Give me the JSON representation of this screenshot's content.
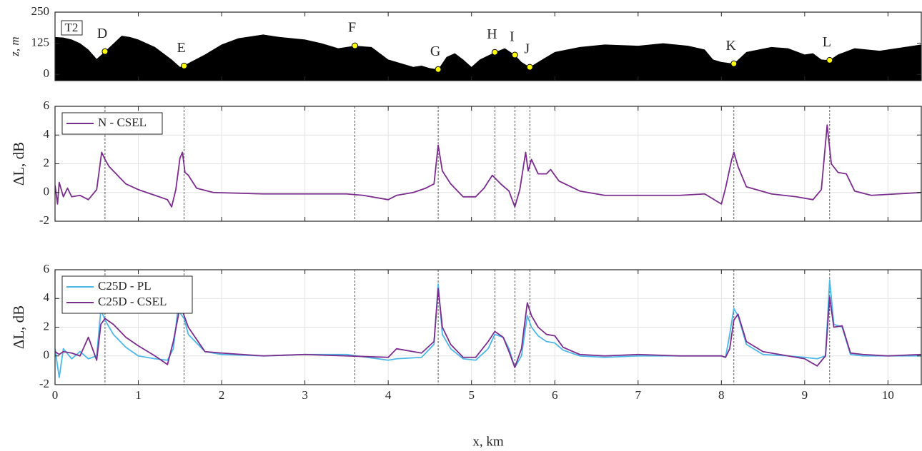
{
  "chart_data": [
    {
      "type": "area",
      "ylabel": "z, m",
      "panel_label": "T2",
      "x": [
        0,
        0.1,
        0.2,
        0.3,
        0.4,
        0.5,
        0.6,
        0.8,
        0.9,
        1.0,
        1.2,
        1.4,
        1.5,
        1.55,
        1.6,
        1.8,
        2.0,
        2.2,
        2.5,
        2.7,
        3.0,
        3.2,
        3.4,
        3.6,
        3.8,
        4.0,
        4.2,
        4.3,
        4.4,
        4.5,
        4.6,
        4.7,
        4.8,
        4.9,
        5.0,
        5.1,
        5.28,
        5.4,
        5.52,
        5.6,
        5.7,
        5.8,
        6.0,
        6.3,
        6.6,
        7.0,
        7.3,
        7.6,
        7.8,
        7.9,
        8.0,
        8.15,
        8.3,
        8.6,
        8.8,
        9.0,
        9.1,
        9.2,
        9.3,
        9.4,
        9.6,
        9.9,
        10.2,
        10.4
      ],
      "series": [
        {
          "color": "#000000",
          "values": [
            150,
            148,
            140,
            125,
            100,
            62,
            92,
            155,
            150,
            140,
            110,
            60,
            30,
            34,
            45,
            80,
            120,
            145,
            160,
            150,
            140,
            125,
            105,
            115,
            110,
            60,
            40,
            30,
            35,
            25,
            20,
            70,
            85,
            60,
            30,
            60,
            89,
            105,
            78,
            50,
            29,
            50,
            90,
            110,
            120,
            115,
            125,
            115,
            100,
            60,
            50,
            43,
            90,
            110,
            105,
            80,
            85,
            60,
            57,
            80,
            105,
            95,
            110,
            120
          ]
        }
      ],
      "points": [
        {
          "label": "D",
          "x": 0.6,
          "z": 92
        },
        {
          "label": "E",
          "x": 1.55,
          "z": 34
        },
        {
          "label": "F",
          "x": 3.6,
          "z": 115
        },
        {
          "label": "G",
          "x": 4.6,
          "z": 20
        },
        {
          "label": "H",
          "x": 5.28,
          "z": 89
        },
        {
          "label": "I",
          "x": 5.52,
          "z": 78
        },
        {
          "label": "J",
          "x": 5.7,
          "z": 29
        },
        {
          "label": "K",
          "x": 8.15,
          "z": 43
        },
        {
          "label": "L",
          "x": 9.3,
          "z": 57
        }
      ],
      "point_color": "#ffff00",
      "xlim": [
        0,
        10.4
      ],
      "xticks": [
        0,
        1,
        2,
        3,
        4,
        5,
        6,
        7,
        8,
        9,
        10
      ],
      "ylim": [
        -25,
        250
      ],
      "yticks": [
        0,
        125,
        250
      ],
      "grid": false
    },
    {
      "type": "line",
      "ylabel": "ΔL, dB",
      "legend": "upper left",
      "x": [
        0,
        0.03,
        0.05,
        0.1,
        0.15,
        0.2,
        0.3,
        0.4,
        0.5,
        0.56,
        0.6,
        0.65,
        0.75,
        0.85,
        1.0,
        1.2,
        1.35,
        1.4,
        1.45,
        1.5,
        1.53,
        1.56,
        1.6,
        1.7,
        1.9,
        2.5,
        3.0,
        3.5,
        3.7,
        4.0,
        4.1,
        4.3,
        4.45,
        4.55,
        4.6,
        4.65,
        4.75,
        4.9,
        5.05,
        5.15,
        5.25,
        5.35,
        5.45,
        5.52,
        5.58,
        5.65,
        5.68,
        5.72,
        5.8,
        5.9,
        5.95,
        6.05,
        6.3,
        6.6,
        7.0,
        7.5,
        7.8,
        8.0,
        8.05,
        8.12,
        8.15,
        8.2,
        8.3,
        8.6,
        8.9,
        9.1,
        9.2,
        9.27,
        9.32,
        9.4,
        9.5,
        9.6,
        9.8,
        10.1,
        10.4
      ],
      "series": [
        {
          "name": "N - CSEL",
          "color": "#7b2d8e",
          "values": [
            0.5,
            -0.8,
            0.7,
            -0.3,
            0.3,
            -0.3,
            -0.2,
            -0.5,
            0.2,
            2.8,
            2.3,
            1.8,
            1.2,
            0.6,
            0.2,
            -0.2,
            -0.5,
            -1.0,
            0.2,
            2.4,
            2.8,
            1.4,
            1.2,
            0.3,
            0.0,
            -0.1,
            -0.1,
            -0.1,
            -0.2,
            -0.5,
            -0.2,
            0.0,
            0.3,
            0.6,
            3.3,
            1.5,
            0.6,
            -0.3,
            -0.3,
            0.3,
            1.2,
            0.6,
            0.1,
            -1.0,
            0.2,
            2.8,
            1.5,
            2.3,
            1.3,
            1.3,
            1.6,
            0.8,
            0.1,
            -0.2,
            -0.2,
            -0.2,
            -0.1,
            -0.8,
            0.3,
            2.2,
            2.8,
            1.8,
            0.4,
            -0.1,
            -0.3,
            -0.5,
            0.2,
            4.7,
            2.0,
            1.4,
            1.3,
            0.1,
            -0.2,
            -0.1,
            0.0
          ]
        }
      ],
      "xlim": [
        0,
        10.4
      ],
      "xticks": [
        0,
        1,
        2,
        3,
        4,
        5,
        6,
        7,
        8,
        9,
        10
      ],
      "ylim": [
        -2,
        6
      ],
      "yticks": [
        -2,
        0,
        2,
        4,
        6
      ],
      "grid": true
    },
    {
      "type": "line",
      "ylabel": "ΔL, dB",
      "xlabel": "x, km",
      "legend": "upper left",
      "x": [
        0,
        0.05,
        0.1,
        0.2,
        0.3,
        0.4,
        0.5,
        0.55,
        0.6,
        0.7,
        0.85,
        1.0,
        1.2,
        1.35,
        1.42,
        1.48,
        1.5,
        1.55,
        1.6,
        1.8,
        2.0,
        2.5,
        3.0,
        3.5,
        4.0,
        4.1,
        4.4,
        4.55,
        4.6,
        4.65,
        4.75,
        4.9,
        5.05,
        5.2,
        5.28,
        5.38,
        5.45,
        5.52,
        5.6,
        5.67,
        5.72,
        5.8,
        5.9,
        6.0,
        6.1,
        6.3,
        6.6,
        7.0,
        7.5,
        8.0,
        8.05,
        8.1,
        8.15,
        8.2,
        8.3,
        8.5,
        8.8,
        9.0,
        9.15,
        9.25,
        9.3,
        9.35,
        9.45,
        9.55,
        9.7,
        10.0,
        10.4
      ],
      "series": [
        {
          "name": "C25D - PL",
          "color": "#4db8e8",
          "values": [
            0.5,
            -1.5,
            0.5,
            -0.2,
            0.3,
            -0.2,
            0.0,
            3.2,
            2.5,
            1.5,
            0.6,
            0.0,
            -0.2,
            -0.3,
            0.5,
            3.5,
            3.0,
            2.6,
            1.5,
            0.3,
            0.1,
            0.0,
            0.1,
            0.1,
            -0.3,
            -0.2,
            -0.1,
            0.8,
            5.0,
            1.5,
            0.5,
            -0.2,
            -0.3,
            0.5,
            1.5,
            1.3,
            0.5,
            -0.8,
            0.0,
            2.8,
            2.0,
            1.4,
            1.0,
            0.9,
            0.4,
            0.0,
            -0.1,
            0.0,
            0.0,
            0.0,
            -0.1,
            1.5,
            3.3,
            2.8,
            0.8,
            0.1,
            0.0,
            -0.1,
            -0.2,
            0.0,
            5.3,
            2.2,
            2.0,
            0.1,
            0.0,
            0.0,
            0.0
          ]
        },
        {
          "name": "C25D - CSEL",
          "color": "#7b2d8e",
          "values": [
            0.3,
            0.1,
            0.3,
            0.2,
            0.0,
            1.3,
            -0.3,
            2.2,
            2.6,
            2.2,
            1.3,
            0.7,
            0.0,
            -0.6,
            1.0,
            2.8,
            3.6,
            2.8,
            2.0,
            0.3,
            0.2,
            0.0,
            0.1,
            0.0,
            -0.1,
            0.5,
            0.2,
            1.0,
            4.7,
            2.0,
            0.8,
            -0.1,
            -0.1,
            1.0,
            1.7,
            1.3,
            0.3,
            -0.8,
            0.5,
            3.7,
            2.8,
            2.0,
            1.5,
            1.4,
            0.6,
            0.1,
            0.0,
            0.1,
            0.0,
            0.0,
            -0.1,
            0.5,
            2.5,
            2.9,
            1.0,
            0.3,
            0.0,
            -0.2,
            -0.7,
            0.0,
            4.1,
            2.0,
            2.1,
            0.2,
            0.1,
            0.0,
            0.1
          ]
        }
      ],
      "xlim": [
        0,
        10.4
      ],
      "xticks": [
        0,
        1,
        2,
        3,
        4,
        5,
        6,
        7,
        8,
        9,
        10
      ],
      "ylim": [
        -2,
        6
      ],
      "yticks": [
        -2,
        0,
        2,
        4,
        6
      ],
      "grid": true
    }
  ]
}
